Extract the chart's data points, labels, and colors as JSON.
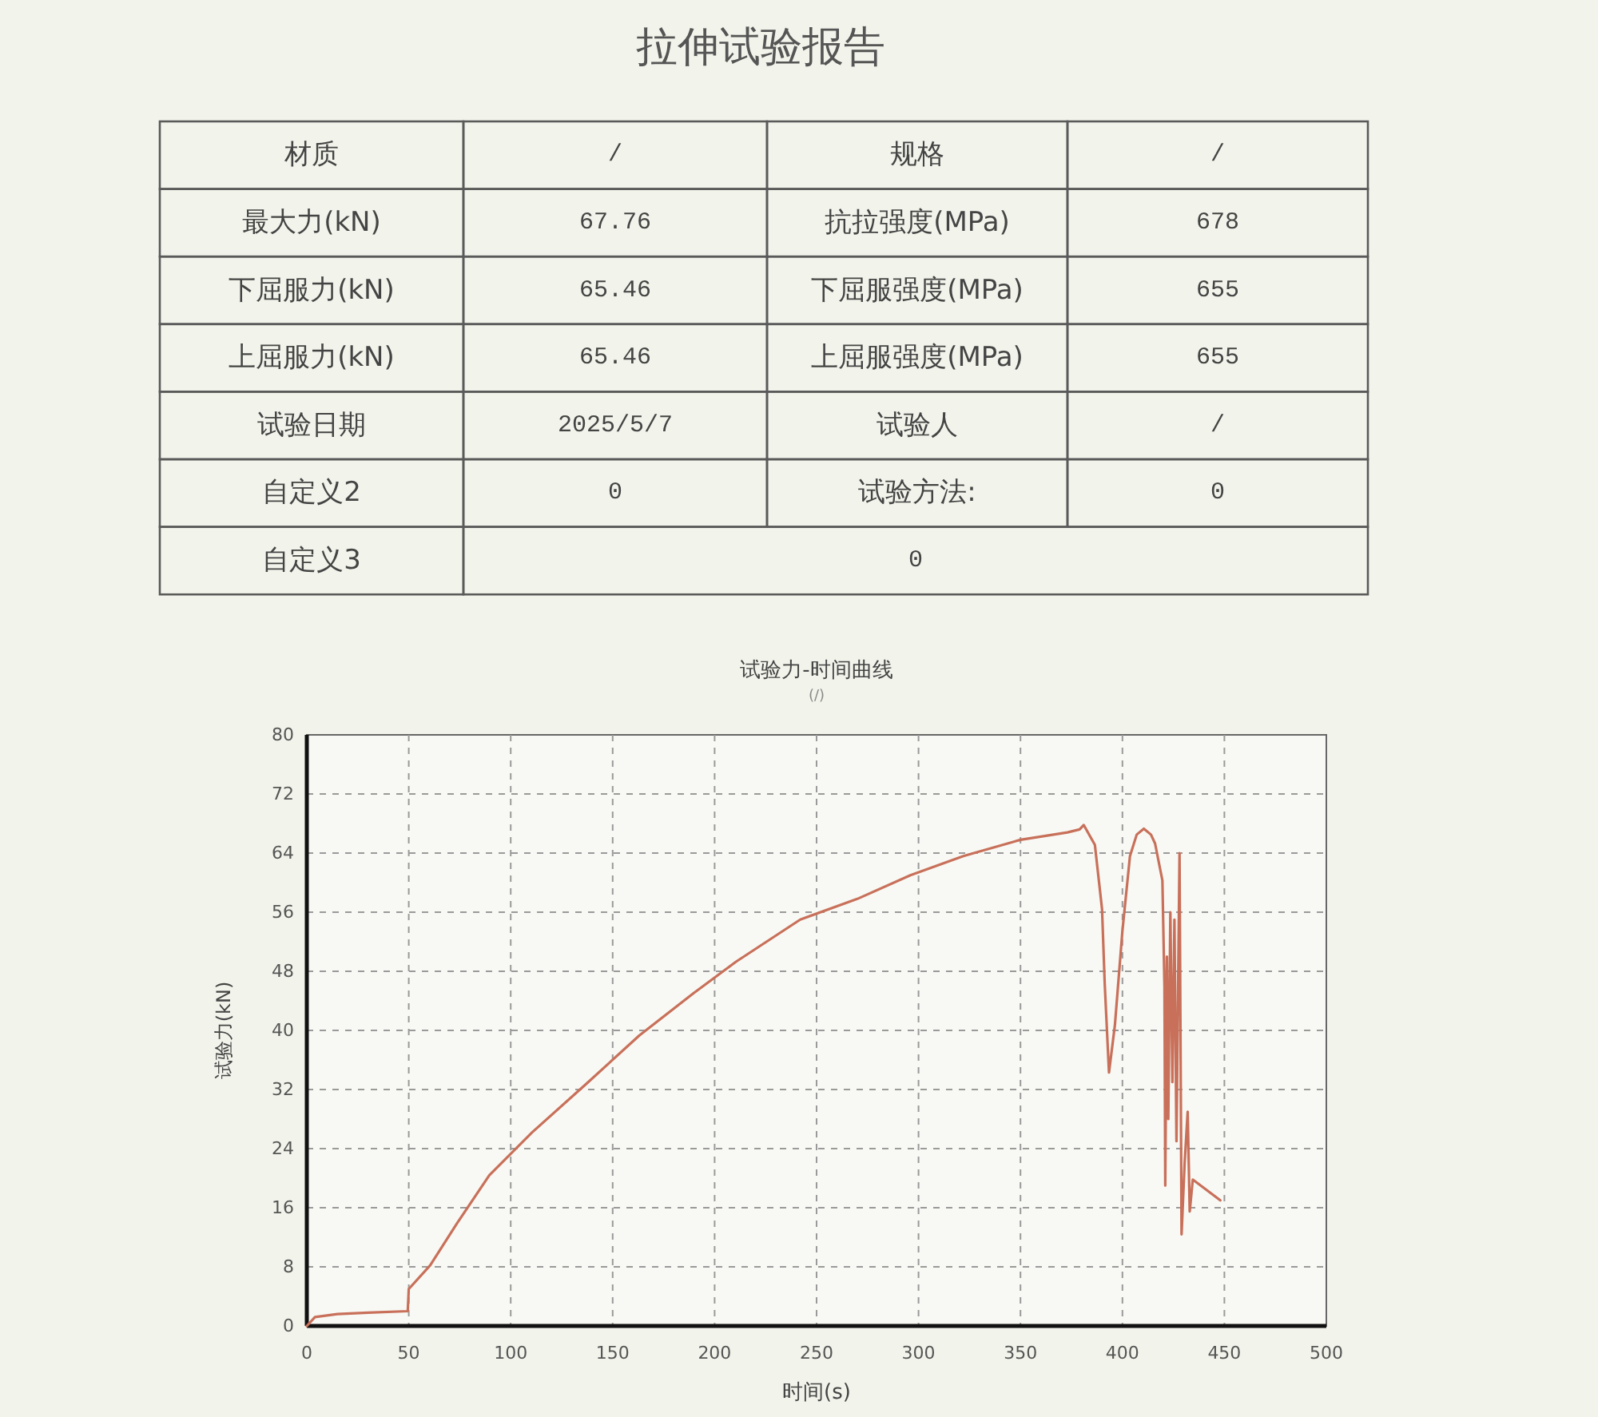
{
  "chart_data": [
    {
      "type": "other",
      "title": "拉伸试验报告",
      "annotations": [
        "材质",
        "/",
        "规格",
        "/",
        "最大力(kN)",
        "67.76",
        "抗拉强度(MPa)",
        "678",
        "下屈服力(kN)",
        "65.46",
        "下屈服强度(MPa)",
        "655",
        "上屈服力(kN)",
        "65.46",
        "上屈服强度(MPa)",
        "655",
        "试验日期",
        "2025/5/7",
        "试验人",
        "/",
        "自定义2",
        "0",
        "试验方法:",
        "0",
        "自定义3",
        "0"
      ]
    },
    {
      "type": "line",
      "title": "试验力-时间曲线",
      "subtitle": "(/)",
      "xlabel": "时间(s)",
      "ylabel": "试验力(kN)",
      "xlim": [
        0,
        500
      ],
      "ylim": [
        0,
        80
      ],
      "xticks": [
        0,
        50,
        100,
        150,
        200,
        250,
        300,
        350,
        400,
        450,
        500
      ],
      "yticks": [
        0,
        8,
        16,
        24,
        32,
        40,
        48,
        56,
        64,
        72,
        80
      ],
      "grid": true,
      "x": [
        0,
        4,
        15,
        30,
        49.5,
        50,
        60.5,
        73.7,
        89.5,
        110.5,
        136.8,
        163,
        189.5,
        210.5,
        242,
        270,
        296,
        322,
        350,
        373,
        379,
        381,
        386.5,
        390,
        391.3,
        393.4,
        396.3,
        400,
        403.7,
        407,
        410.5,
        414,
        416,
        419.6,
        420.6,
        421,
        421.8,
        422.5,
        423.5,
        424.5,
        425.5,
        426.5,
        428,
        429,
        430.5,
        432,
        433,
        434.5,
        448
      ],
      "series": [
        {
          "color": "#c8705a",
          "values": [
            0,
            1.2,
            1.6,
            1.8,
            2.0,
            5.0,
            8.2,
            13.9,
            20.4,
            26.2,
            32.7,
            39.3,
            45,
            49.3,
            55,
            57.8,
            61,
            63.6,
            65.8,
            66.8,
            67.2,
            67.8,
            65.1,
            56.4,
            46.4,
            34.3,
            40.7,
            53.5,
            63.6,
            66.5,
            67.3,
            66.5,
            65.3,
            60.3,
            46,
            19,
            50,
            28,
            56,
            33,
            55,
            25,
            64,
            12.4,
            22,
            29,
            15.5,
            19.8,
            17
          ]
        }
      ]
    }
  ]
}
